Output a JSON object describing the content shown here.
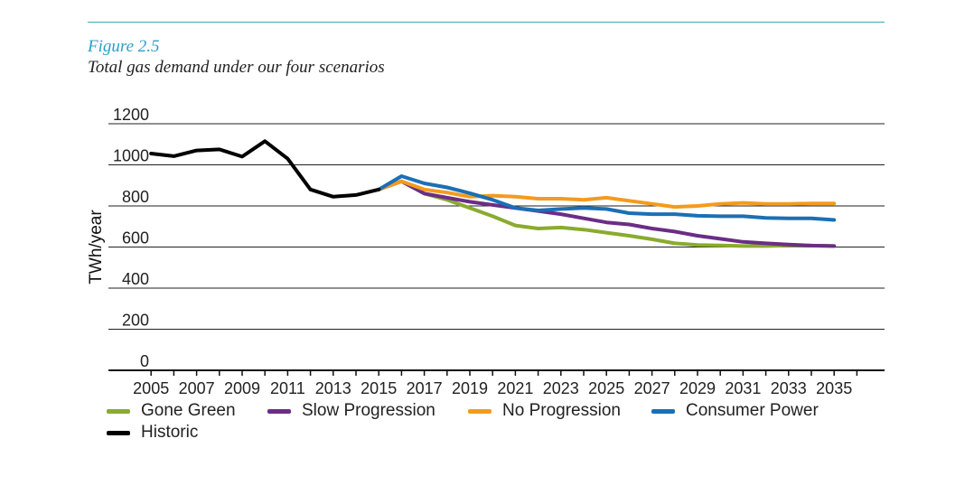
{
  "figure": {
    "label": "Figure 2.5",
    "title": "Total gas demand under our four scenarios"
  },
  "colors": {
    "rule": "#3fa7b8",
    "figure_label": "#2aa0c8",
    "grid": "#222222"
  },
  "chart_data": {
    "type": "line",
    "ylabel": "TWh/year",
    "xlabel": "",
    "ylim": [
      0,
      1200
    ],
    "yticks": [
      0,
      200,
      400,
      600,
      800,
      1000,
      1200
    ],
    "xlim": [
      2004,
      2036
    ],
    "xticks": [
      2005,
      2007,
      2009,
      2011,
      2013,
      2015,
      2017,
      2019,
      2021,
      2023,
      2025,
      2027,
      2029,
      2031,
      2033,
      2035
    ],
    "grid": true,
    "legend_position": "bottom",
    "series": [
      {
        "name": "Historic",
        "color": "#000000",
        "x": [
          2005,
          2006,
          2007,
          2008,
          2009,
          2010,
          2011,
          2012,
          2013,
          2014,
          2015
        ],
        "values": [
          1055,
          1042,
          1070,
          1075,
          1040,
          1115,
          1030,
          880,
          845,
          853,
          880
        ]
      },
      {
        "name": "Gone Green",
        "color": "#8aab2e",
        "x": [
          2015,
          2016,
          2017,
          2018,
          2019,
          2020,
          2021,
          2022,
          2023,
          2024,
          2025,
          2026,
          2027,
          2028,
          2029,
          2030,
          2031,
          2032,
          2033,
          2034,
          2035
        ],
        "values": [
          880,
          920,
          860,
          830,
          790,
          750,
          705,
          690,
          695,
          685,
          670,
          655,
          638,
          618,
          610,
          608,
          605,
          605,
          608,
          607,
          605
        ]
      },
      {
        "name": "Slow Progression",
        "color": "#6b2d86",
        "x": [
          2015,
          2016,
          2017,
          2018,
          2019,
          2020,
          2021,
          2022,
          2023,
          2024,
          2025,
          2026,
          2027,
          2028,
          2029,
          2030,
          2031,
          2032,
          2033,
          2034,
          2035
        ],
        "values": [
          880,
          920,
          860,
          840,
          820,
          805,
          790,
          775,
          760,
          740,
          720,
          710,
          690,
          675,
          655,
          640,
          625,
          618,
          612,
          607,
          605
        ]
      },
      {
        "name": "No Progression",
        "color": "#f39b1e",
        "x": [
          2015,
          2016,
          2017,
          2018,
          2019,
          2020,
          2021,
          2022,
          2023,
          2024,
          2025,
          2026,
          2027,
          2028,
          2029,
          2030,
          2031,
          2032,
          2033,
          2034,
          2035
        ],
        "values": [
          880,
          920,
          880,
          865,
          845,
          850,
          845,
          835,
          835,
          830,
          840,
          825,
          810,
          795,
          800,
          810,
          815,
          810,
          810,
          812,
          812
        ]
      },
      {
        "name": "Consumer Power",
        "color": "#1b6fb5",
        "x": [
          2015,
          2016,
          2017,
          2018,
          2019,
          2020,
          2021,
          2022,
          2023,
          2024,
          2025,
          2026,
          2027,
          2028,
          2029,
          2030,
          2031,
          2032,
          2033,
          2034,
          2035
        ],
        "values": [
          880,
          945,
          910,
          890,
          862,
          830,
          790,
          778,
          785,
          790,
          785,
          765,
          760,
          760,
          752,
          750,
          750,
          742,
          740,
          740,
          732
        ]
      }
    ],
    "legend_order": [
      "Gone Green",
      "Slow Progression",
      "No Progression",
      "Consumer Power",
      "Historic"
    ]
  }
}
